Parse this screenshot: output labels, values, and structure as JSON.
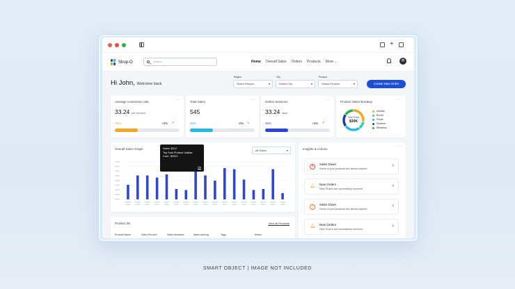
{
  "window": {
    "controls": [
      "close",
      "minimize",
      "maximize"
    ]
  },
  "nav": {
    "logo": "Shop-O",
    "search_placeholder": "Search",
    "links": [
      "Home",
      "Overall Sales",
      "Orders",
      "Products",
      "More"
    ],
    "active": "Home"
  },
  "welcome": {
    "greeting": "Hi John,",
    "subtitle": "Welcome back"
  },
  "filters": [
    {
      "label": "Region",
      "placeholder": "Select Region"
    },
    {
      "label": "City",
      "placeholder": "Select City"
    },
    {
      "label": "Product",
      "placeholder": "Select Product"
    }
  ],
  "create_button": "Create New Order",
  "stats": [
    {
      "title": "Average conversion rate",
      "value": "33.24",
      "unit": "per product",
      "percent_label": "35%",
      "progress": 0.35,
      "change": "+2%",
      "trend": "up",
      "color": "#f5a524"
    },
    {
      "title": "Total Sales",
      "value": "545",
      "unit": "",
      "percent_label": "35%",
      "progress": 0.35,
      "change": "-2%",
      "trend": "down",
      "color": "#22b8e8"
    },
    {
      "title": "Online Sessions",
      "value": "33.24",
      "unit": "days",
      "percent_label": "35%",
      "progress": 0.35,
      "change": "+2%",
      "trend": "up",
      "color": "#2746d8"
    }
  ],
  "breakup": {
    "title": "Product Sales Breakup",
    "center_label": "Total Sales",
    "center_value": "$30K",
    "items": [
      {
        "name": "Adidas",
        "color": "#f5a524",
        "share": 0.28
      },
      {
        "name": "Boost",
        "color": "#2dcfa3",
        "share": 0.12
      },
      {
        "name": "Pepsi",
        "color": "#22b8e8",
        "share": 0.25
      },
      {
        "name": "Reebok",
        "color": "#1f3bb3",
        "share": 0.2
      },
      {
        "name": "Mindless",
        "color": "#2fb24c",
        "share": 0.15
      }
    ]
  },
  "sales_graph": {
    "title": "Overall Sales Graph",
    "filter": "All Sales",
    "tooltip": {
      "line1": "Sales: $212",
      "line2": "Top Sold Product: Adidas",
      "line3": "Cost : $3312",
      "action": "Ok"
    }
  },
  "chart_data": {
    "type": "bar",
    "categories": [
      "1",
      "2",
      "3",
      "4",
      "5",
      "6",
      "7",
      "8",
      "9",
      "10",
      "11",
      "12",
      "13",
      "14",
      "15",
      "16",
      "17"
    ],
    "values": [
      14,
      23,
      23,
      21,
      24,
      10,
      9,
      27,
      23,
      18,
      30,
      29,
      19,
      9,
      10,
      29,
      6
    ],
    "ylim": [
      0,
      36
    ],
    "color": "#2f46d3"
  },
  "insights": {
    "title": "Insights & Actions",
    "items": [
      {
        "title": "Sales Down",
        "subtitle": "Some of your products are almost expired",
        "icon": "close-circle-icon",
        "color": "#ef4444"
      },
      {
        "title": "New Orders",
        "subtitle": "New Orders are successfully received",
        "icon": "bell-icon",
        "color": "#f5a524"
      },
      {
        "title": "Sales Down",
        "subtitle": "Some of your products are almost expired",
        "icon": "alert-circle-icon",
        "color": "#f97316"
      },
      {
        "title": "New Orders",
        "subtitle": "New Orders are successfully received",
        "icon": "bell-icon",
        "color": "#f5a524"
      }
    ]
  },
  "product_list": {
    "title": "Product list",
    "view_all": "View all Products",
    "columns": [
      "Product Name",
      "Sales Percent",
      "Sales Numbers",
      "Sales ranking",
      "Tags",
      "Action"
    ]
  },
  "footer": "SMART OBJECT  |  IMAGE NOT INCLUDED"
}
